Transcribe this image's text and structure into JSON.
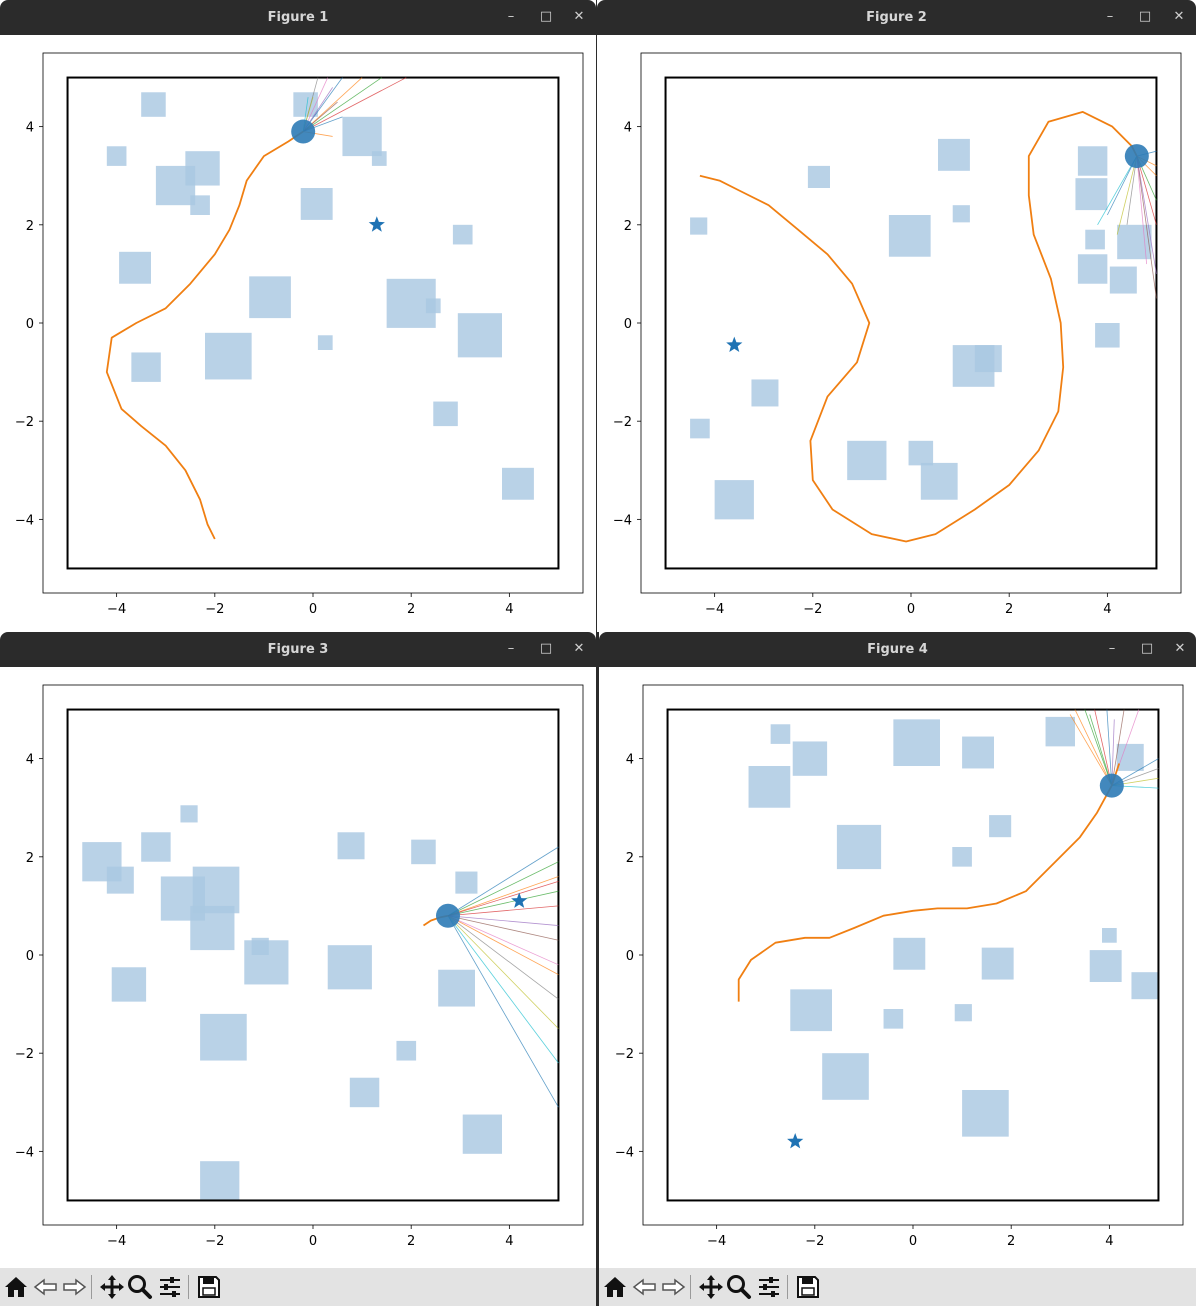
{
  "windows": [
    {
      "id": "fig1",
      "title": "Figure 1",
      "goal": [
        1.3,
        2.0
      ],
      "robot": [
        -0.2,
        3.9
      ],
      "path": [
        [
          -2.0,
          -4.4
        ],
        [
          -2.15,
          -4.1
        ],
        [
          -2.3,
          -3.6
        ],
        [
          -2.6,
          -3.0
        ],
        [
          -3.0,
          -2.5
        ],
        [
          -3.5,
          -2.1
        ],
        [
          -3.9,
          -1.75
        ],
        [
          -4.2,
          -1.0
        ],
        [
          -4.1,
          -0.3
        ],
        [
          -3.6,
          0.0
        ],
        [
          -3.0,
          0.3
        ],
        [
          -2.5,
          0.8
        ],
        [
          -2.0,
          1.4
        ],
        [
          -1.7,
          1.9
        ],
        [
          -1.5,
          2.4
        ],
        [
          -1.35,
          2.9
        ],
        [
          -1.0,
          3.4
        ],
        [
          -0.5,
          3.7
        ],
        [
          -0.2,
          3.9
        ]
      ],
      "obstacles": [
        [
          -3.5,
          4.2,
          0.5,
          0.5
        ],
        [
          -0.4,
          4.2,
          0.5,
          0.5
        ],
        [
          -4.2,
          3.2,
          0.4,
          0.4
        ],
        [
          -2.6,
          2.8,
          0.7,
          0.7
        ],
        [
          -3.2,
          2.4,
          0.8,
          0.8
        ],
        [
          -2.5,
          2.2,
          0.4,
          0.4
        ],
        [
          0.6,
          3.4,
          0.8,
          0.8
        ],
        [
          1.2,
          3.2,
          0.3,
          0.3
        ],
        [
          -0.25,
          2.1,
          0.65,
          0.65
        ],
        [
          2.85,
          1.6,
          0.4,
          0.4
        ],
        [
          -3.95,
          0.8,
          0.65,
          0.65
        ],
        [
          -1.3,
          0.1,
          0.85,
          0.85
        ],
        [
          1.5,
          -0.1,
          1.0,
          1.0
        ],
        [
          2.3,
          0.2,
          0.3,
          0.3
        ],
        [
          2.95,
          -0.7,
          0.9,
          0.9
        ],
        [
          0.1,
          -0.55,
          0.3,
          0.3
        ],
        [
          -3.7,
          -1.2,
          0.6,
          0.6
        ],
        [
          -2.2,
          -1.15,
          0.95,
          0.95
        ],
        [
          2.45,
          -2.1,
          0.5,
          0.5
        ],
        [
          3.85,
          -3.6,
          0.65,
          0.65
        ]
      ],
      "rays": [
        [
          0.6,
          5.0
        ],
        [
          1.0,
          5.0
        ],
        [
          1.4,
          5.0
        ],
        [
          1.9,
          5.0
        ],
        [
          0.4,
          4.8
        ],
        [
          0.5,
          4.5
        ],
        [
          0.3,
          5.0
        ],
        [
          0.1,
          5.0
        ],
        [
          0.0,
          4.6
        ],
        [
          -0.1,
          4.6
        ],
        [
          0.6,
          4.2
        ],
        [
          0.4,
          3.8
        ]
      ]
    },
    {
      "id": "fig2",
      "title": "Figure 2",
      "goal": [
        -3.6,
        -0.45
      ],
      "robot": [
        4.6,
        3.4
      ],
      "path": [
        [
          -4.3,
          3.0
        ],
        [
          -3.9,
          2.9
        ],
        [
          -3.5,
          2.7
        ],
        [
          -2.9,
          2.4
        ],
        [
          -2.3,
          1.9
        ],
        [
          -1.7,
          1.4
        ],
        [
          -1.2,
          0.8
        ],
        [
          -0.85,
          0.0
        ],
        [
          -1.1,
          -0.8
        ],
        [
          -1.7,
          -1.5
        ],
        [
          -2.05,
          -2.4
        ],
        [
          -2.0,
          -3.2
        ],
        [
          -1.6,
          -3.8
        ],
        [
          -0.8,
          -4.3
        ],
        [
          -0.1,
          -4.45
        ],
        [
          0.5,
          -4.3
        ],
        [
          1.3,
          -3.8
        ],
        [
          2.0,
          -3.3
        ],
        [
          2.6,
          -2.6
        ],
        [
          3.0,
          -1.8
        ],
        [
          3.1,
          -0.9
        ],
        [
          3.05,
          0.0
        ],
        [
          2.85,
          0.9
        ],
        [
          2.5,
          1.8
        ],
        [
          2.4,
          2.6
        ],
        [
          2.4,
          3.4
        ],
        [
          2.8,
          4.1
        ],
        [
          3.5,
          4.3
        ],
        [
          4.1,
          4.0
        ],
        [
          4.5,
          3.6
        ],
        [
          4.6,
          3.4
        ]
      ],
      "obstacles": [
        [
          -4.5,
          1.8,
          0.35,
          0.35
        ],
        [
          -2.1,
          2.75,
          0.45,
          0.45
        ],
        [
          -0.45,
          1.35,
          0.85,
          0.85
        ],
        [
          0.55,
          3.1,
          0.65,
          0.65
        ],
        [
          0.85,
          2.05,
          0.35,
          0.35
        ],
        [
          3.4,
          3.0,
          0.6,
          0.6
        ],
        [
          3.35,
          2.3,
          0.65,
          0.65
        ],
        [
          3.55,
          1.5,
          0.4,
          0.4
        ],
        [
          4.2,
          1.3,
          0.7,
          0.7
        ],
        [
          3.4,
          0.8,
          0.6,
          0.6
        ],
        [
          4.05,
          0.6,
          0.55,
          0.55
        ],
        [
          3.75,
          -0.5,
          0.5,
          0.5
        ],
        [
          0.85,
          -1.3,
          0.85,
          0.85
        ],
        [
          1.3,
          -1.0,
          0.55,
          0.55
        ],
        [
          -3.25,
          -1.7,
          0.55,
          0.55
        ],
        [
          -4.5,
          -2.35,
          0.4,
          0.4
        ],
        [
          -1.3,
          -3.2,
          0.8,
          0.8
        ],
        [
          -0.05,
          -2.9,
          0.5,
          0.5
        ],
        [
          0.2,
          -3.6,
          0.75,
          0.75
        ],
        [
          -4.0,
          -4.0,
          0.8,
          0.8
        ]
      ],
      "rays": [
        [
          5.0,
          3.5
        ],
        [
          5.0,
          3.0
        ],
        [
          5.0,
          2.5
        ],
        [
          5.0,
          2.0
        ],
        [
          5.0,
          1.0
        ],
        [
          5.0,
          0.5
        ],
        [
          4.8,
          1.2
        ],
        [
          4.4,
          2.0
        ],
        [
          4.2,
          1.8
        ],
        [
          3.8,
          2.0
        ],
        [
          4.0,
          2.2
        ],
        [
          5.0,
          3.2
        ]
      ]
    },
    {
      "id": "fig3",
      "title": "Figure 3",
      "goal": [
        4.2,
        1.1
      ],
      "robot": [
        2.75,
        0.8
      ],
      "path": [
        [
          2.25,
          0.6
        ],
        [
          2.4,
          0.7
        ],
        [
          2.6,
          0.77
        ],
        [
          2.75,
          0.8
        ]
      ],
      "obstacles": [
        [
          -4.7,
          1.5,
          0.8,
          0.8
        ],
        [
          -4.2,
          1.25,
          0.55,
          0.55
        ],
        [
          -3.5,
          1.9,
          0.6,
          0.6
        ],
        [
          -2.7,
          2.7,
          0.35,
          0.35
        ],
        [
          -3.1,
          0.7,
          0.9,
          0.9
        ],
        [
          -2.45,
          0.85,
          0.95,
          0.95
        ],
        [
          -2.5,
          0.1,
          0.9,
          0.9
        ],
        [
          -1.25,
          0.0,
          0.35,
          0.35
        ],
        [
          -1.4,
          -0.6,
          0.9,
          0.9
        ],
        [
          0.3,
          -0.7,
          0.9,
          0.9
        ],
        [
          0.5,
          1.95,
          0.55,
          0.55
        ],
        [
          2.0,
          1.85,
          0.5,
          0.5
        ],
        [
          2.9,
          1.25,
          0.45,
          0.45
        ],
        [
          2.55,
          -1.05,
          0.75,
          0.75
        ],
        [
          -4.1,
          -0.95,
          0.7,
          0.7
        ],
        [
          -2.3,
          -2.15,
          0.95,
          0.95
        ],
        [
          1.7,
          -2.15,
          0.4,
          0.4
        ],
        [
          0.75,
          -3.1,
          0.6,
          0.6
        ],
        [
          3.05,
          -4.05,
          0.8,
          0.8
        ],
        [
          -2.3,
          -5.0,
          0.8,
          0.8
        ]
      ],
      "rays": [
        [
          5.0,
          2.2
        ],
        [
          5.0,
          1.6
        ],
        [
          5.0,
          1.3
        ],
        [
          5.0,
          1.0
        ],
        [
          5.0,
          0.6
        ],
        [
          5.0,
          0.3
        ],
        [
          5.0,
          -0.2
        ],
        [
          5.0,
          -0.9
        ],
        [
          5.0,
          -1.5
        ],
        [
          5.0,
          -2.2
        ],
        [
          5.0,
          -3.1
        ],
        [
          5.0,
          -0.4
        ],
        [
          5.0,
          1.9
        ],
        [
          5.0,
          1.5
        ]
      ]
    },
    {
      "id": "fig4",
      "title": "Figure 4",
      "goal": [
        -2.4,
        -3.8
      ],
      "robot": [
        4.05,
        3.45
      ],
      "path": [
        [
          -3.55,
          -0.95
        ],
        [
          -3.55,
          -0.5
        ],
        [
          -3.3,
          -0.1
        ],
        [
          -2.8,
          0.25
        ],
        [
          -2.2,
          0.35
        ],
        [
          -1.7,
          0.35
        ],
        [
          -1.2,
          0.55
        ],
        [
          -0.6,
          0.8
        ],
        [
          0.0,
          0.9
        ],
        [
          0.5,
          0.95
        ],
        [
          1.1,
          0.95
        ],
        [
          1.7,
          1.05
        ],
        [
          2.3,
          1.3
        ],
        [
          2.9,
          1.9
        ],
        [
          3.4,
          2.4
        ],
        [
          3.75,
          2.9
        ],
        [
          4.05,
          3.45
        ],
        [
          4.2,
          3.9
        ]
      ],
      "obstacles": [
        [
          -2.9,
          4.3,
          0.4,
          0.4
        ],
        [
          -2.45,
          3.65,
          0.7,
          0.7
        ],
        [
          -3.35,
          3.0,
          0.85,
          0.85
        ],
        [
          -0.4,
          3.85,
          0.95,
          0.95
        ],
        [
          1.0,
          3.8,
          0.65,
          0.65
        ],
        [
          2.7,
          4.25,
          0.6,
          0.6
        ],
        [
          4.15,
          3.75,
          0.55,
          0.55
        ],
        [
          -1.55,
          1.75,
          0.9,
          0.9
        ],
        [
          1.55,
          2.4,
          0.45,
          0.45
        ],
        [
          0.8,
          1.8,
          0.4,
          0.4
        ],
        [
          -0.4,
          -0.3,
          0.65,
          0.65
        ],
        [
          1.4,
          -0.5,
          0.65,
          0.65
        ],
        [
          3.85,
          0.25,
          0.3,
          0.3
        ],
        [
          3.6,
          -0.55,
          0.65,
          0.65
        ],
        [
          4.45,
          -0.9,
          0.55,
          0.55
        ],
        [
          -2.5,
          -1.55,
          0.85,
          0.85
        ],
        [
          -0.6,
          -1.5,
          0.4,
          0.4
        ],
        [
          0.85,
          -1.35,
          0.35,
          0.35
        ],
        [
          -1.85,
          -2.95,
          0.95,
          0.95
        ],
        [
          1.0,
          -3.7,
          0.95,
          0.95
        ]
      ],
      "rays": [
        [
          3.95,
          5.0
        ],
        [
          3.3,
          5.0
        ],
        [
          3.5,
          5.0
        ],
        [
          3.7,
          5.0
        ],
        [
          4.1,
          4.8
        ],
        [
          4.3,
          5.0
        ],
        [
          4.6,
          5.0
        ],
        [
          5.0,
          3.8
        ],
        [
          5.0,
          3.6
        ],
        [
          5.0,
          3.4
        ],
        [
          5.0,
          4.0
        ],
        [
          3.2,
          4.9
        ],
        [
          3.6,
          4.9
        ]
      ]
    }
  ],
  "axes": {
    "xlim": [
      -5.5,
      5.5
    ],
    "ylim": [
      -5.5,
      5.5
    ],
    "xticks": [
      "−4",
      "−2",
      "0",
      "2",
      "4"
    ],
    "yticks": [
      "−4",
      "−2",
      "0",
      "2",
      "4"
    ],
    "tickvals": [
      -4,
      -2,
      0,
      2,
      4
    ],
    "bounds": [
      -5,
      5
    ]
  },
  "colors": {
    "obstacle": "#aac8e2",
    "robot": "#2e7bb6",
    "path": "#f07f12",
    "goal": "#1f73b4",
    "titlebar": "#2b2b2b"
  },
  "controls": {
    "minimize": "–",
    "maximize": "□",
    "close": "✕"
  },
  "toolbar_icons": [
    "home-icon",
    "back-icon",
    "forward-icon",
    "pan-icon",
    "zoom-icon",
    "configure-icon",
    "save-icon"
  ]
}
